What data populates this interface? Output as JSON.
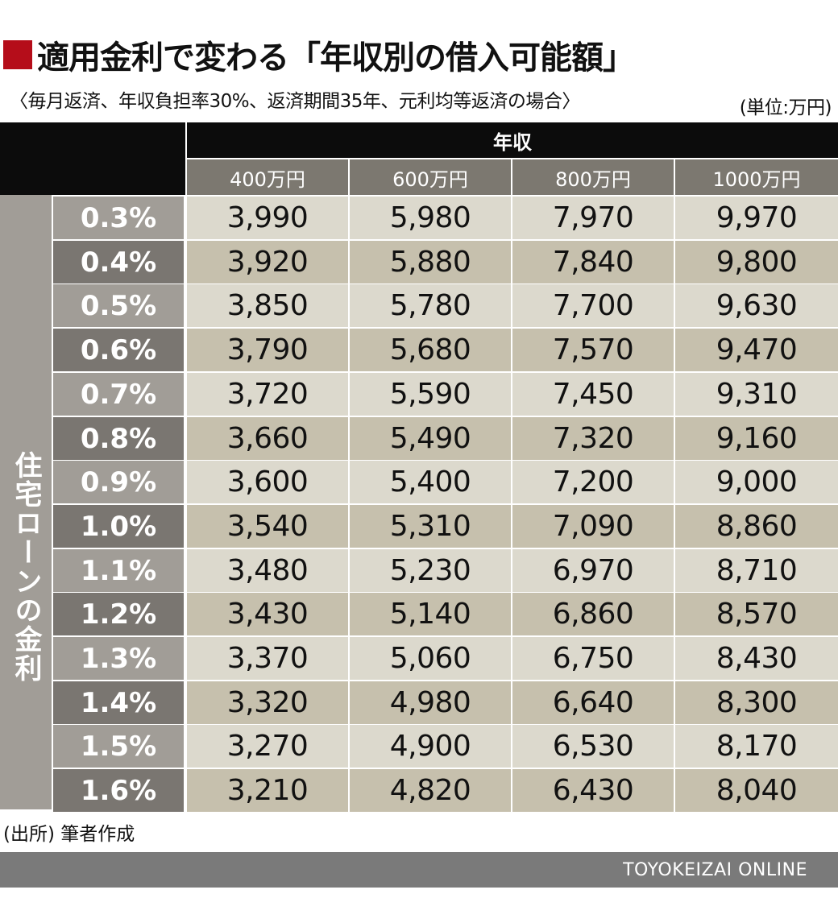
{
  "title": "適用金利で変わる「年収別の借入可能額」",
  "subtitle": "〈毎月返済、年収負担率30%、返済期間35年、元利均等返済の場合〉",
  "unit": "(単位:万円)",
  "source": "(出所) 筆者作成",
  "footer": "TOYOKEIZAI ONLINE",
  "colors": {
    "title_mark": "#b50d1a",
    "header_dark": "#0c0c0c",
    "header_sub": "#7c7870",
    "side_label": "#a19d97",
    "rate_dark": "#7a7671",
    "rate_light": "#a19d97",
    "cell_dark": "#c6c0ad",
    "cell_light": "#dcd9cd"
  },
  "chart_data": {
    "type": "table",
    "column_group": "年収",
    "row_group": "住宅ローンの金利",
    "columns": [
      "400万円",
      "600万円",
      "800万円",
      "1000万円"
    ],
    "rows": [
      {
        "rate": "0.3%",
        "values": [
          "3,990",
          "5,980",
          "7,970",
          "9,970"
        ]
      },
      {
        "rate": "0.4%",
        "values": [
          "3,920",
          "5,880",
          "7,840",
          "9,800"
        ]
      },
      {
        "rate": "0.5%",
        "values": [
          "3,850",
          "5,780",
          "7,700",
          "9,630"
        ]
      },
      {
        "rate": "0.6%",
        "values": [
          "3,790",
          "5,680",
          "7,570",
          "9,470"
        ]
      },
      {
        "rate": "0.7%",
        "values": [
          "3,720",
          "5,590",
          "7,450",
          "9,310"
        ]
      },
      {
        "rate": "0.8%",
        "values": [
          "3,660",
          "5,490",
          "7,320",
          "9,160"
        ]
      },
      {
        "rate": "0.9%",
        "values": [
          "3,600",
          "5,400",
          "7,200",
          "9,000"
        ]
      },
      {
        "rate": "1.0%",
        "values": [
          "3,540",
          "5,310",
          "7,090",
          "8,860"
        ]
      },
      {
        "rate": "1.1%",
        "values": [
          "3,480",
          "5,230",
          "6,970",
          "8,710"
        ]
      },
      {
        "rate": "1.2%",
        "values": [
          "3,430",
          "5,140",
          "6,860",
          "8,570"
        ]
      },
      {
        "rate": "1.3%",
        "values": [
          "3,370",
          "5,060",
          "6,750",
          "8,430"
        ]
      },
      {
        "rate": "1.4%",
        "values": [
          "3,320",
          "4,980",
          "6,640",
          "8,300"
        ]
      },
      {
        "rate": "1.5%",
        "values": [
          "3,270",
          "4,900",
          "6,530",
          "8,170"
        ]
      },
      {
        "rate": "1.6%",
        "values": [
          "3,210",
          "4,820",
          "6,430",
          "8,040"
        ]
      }
    ]
  }
}
